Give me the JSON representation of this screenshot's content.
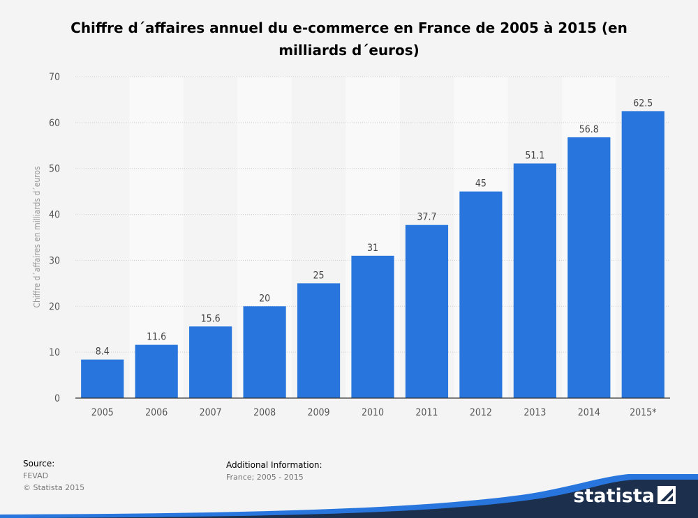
{
  "chart_data": {
    "type": "bar",
    "title": "Chiffre d´affaires annuel du e-commerce en France de 2005 à 2015 (en milliards d´euros)",
    "title_lines": [
      "Chiffre d´affaires annuel du e-commerce en France de 2005 à 2015 (en",
      "milliards d´euros)"
    ],
    "xlabel": "",
    "ylabel": "Chiffre d´affaires en milliards d´euros",
    "categories": [
      "2005",
      "2006",
      "2007",
      "2008",
      "2009",
      "2010",
      "2011",
      "2012",
      "2013",
      "2014",
      "2015*"
    ],
    "values": [
      8.4,
      11.6,
      15.6,
      20,
      25,
      31,
      37.7,
      45,
      51.1,
      56.8,
      62.5
    ],
    "data_labels": [
      "8.4",
      "11.6",
      "15.6",
      "20",
      "25",
      "31",
      "37.7",
      "45",
      "51.1",
      "56.8",
      "62.5"
    ],
    "ylim": [
      0,
      70
    ],
    "yticks": [
      0,
      10,
      20,
      30,
      40,
      50,
      60,
      70
    ],
    "grid": true,
    "bar_color": "#2876dd"
  },
  "footer": {
    "source_heading": "Source:",
    "source_lines": [
      "FEVAD",
      "© Statista 2015"
    ],
    "additional_heading": "Additional Information:",
    "additional_text": "France; 2005 - 2015"
  },
  "logo": {
    "text": "statista"
  },
  "colors": {
    "background": "#f4f4f4",
    "band": "#f9f9f9",
    "grid": "#cccccc",
    "footer_wave": "#1c2f4d",
    "footer_wave_accent": "#2876dd"
  }
}
